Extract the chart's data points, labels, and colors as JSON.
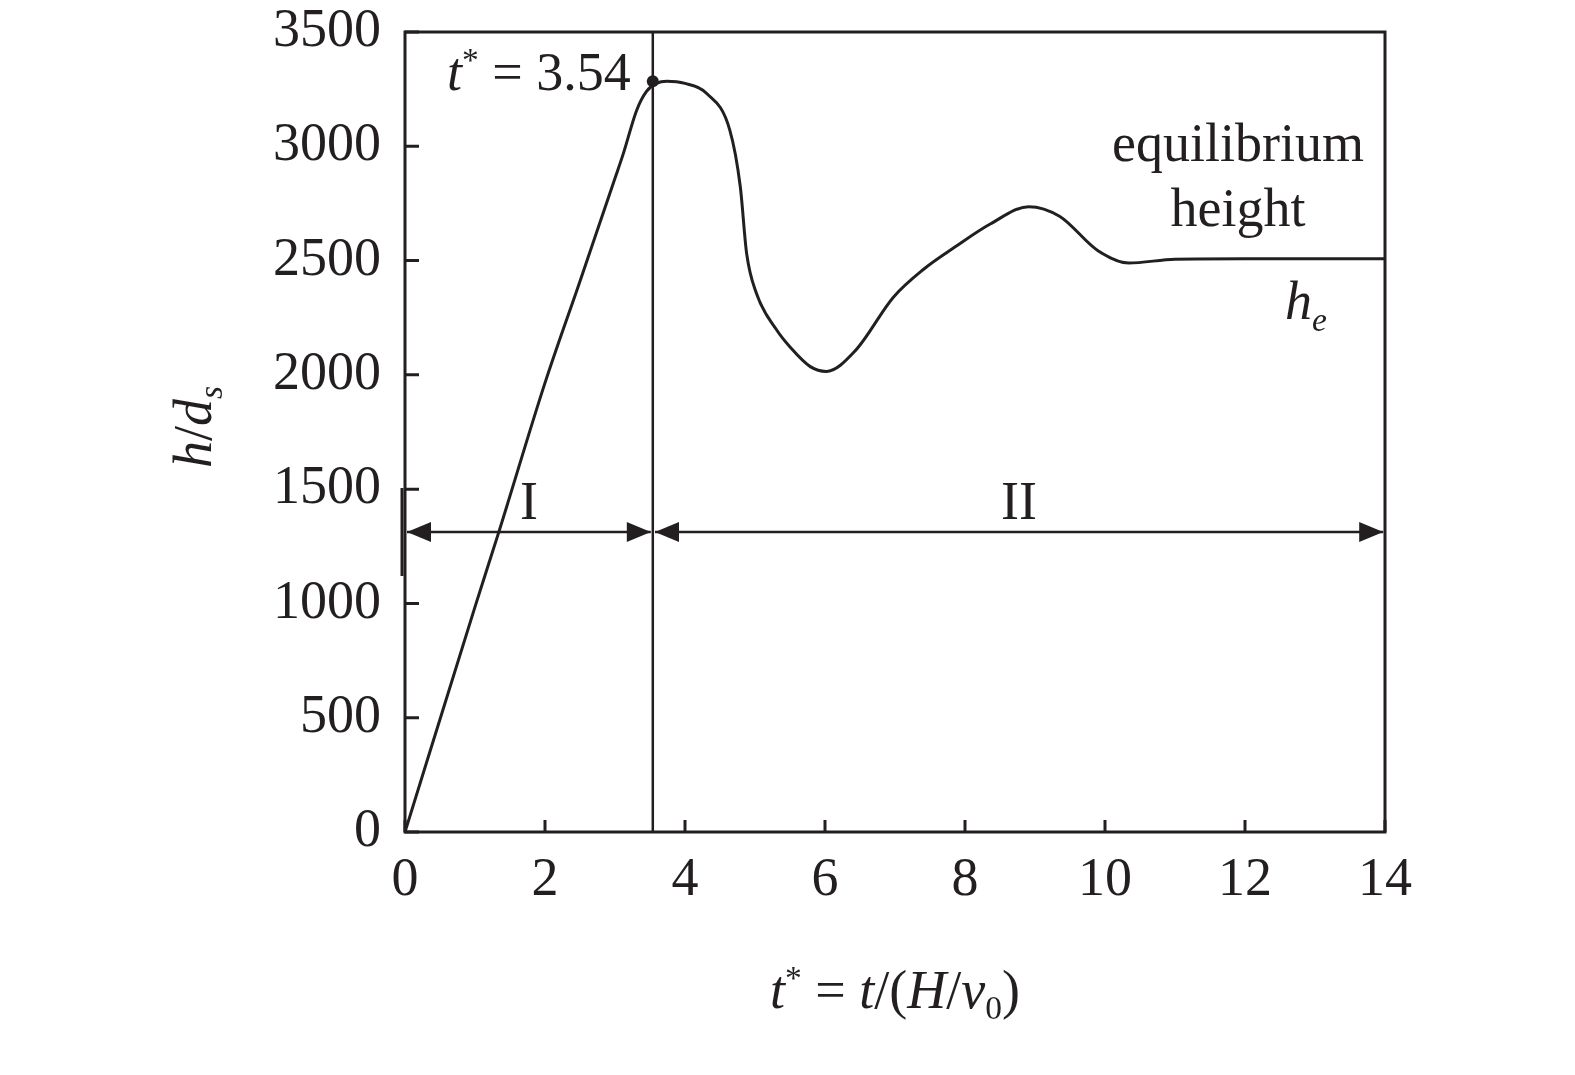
{
  "chart_data": {
    "type": "line",
    "xlabel": "t$^{*}$ = t/(H/v$_{0}$)",
    "ylabel": "h/d$_{s}$",
    "xlim": [
      0,
      14
    ],
    "xticks": [
      0,
      2,
      4,
      6,
      8,
      10,
      12,
      14
    ],
    "ylim": [
      0,
      3500
    ],
    "yticks": [
      0,
      500,
      1000,
      1500,
      2000,
      2500,
      3000,
      3500
    ],
    "series": [
      {
        "color": "#231f20",
        "marker": "none",
        "line_style": "solid",
        "x": [
          0,
          1,
          1.34,
          2,
          2.5,
          3,
          3.12,
          3.31,
          3.45,
          3.59,
          3.74,
          4,
          4.31,
          4.64,
          4.79,
          4.88,
          5.02,
          5.31,
          5.5,
          5.79,
          6.02,
          6.43,
          6.98,
          7.4,
          7.86,
          8.36,
          8.91,
          9.35,
          9.9,
          10.34,
          11,
          12,
          13,
          14
        ],
        "values": [
          0,
          985,
          1312,
          1965,
          2410,
          2860,
          2969,
          3158,
          3240,
          3275,
          3285,
          3275,
          3231,
          3071,
          2823,
          2532,
          2357,
          2196,
          2122,
          2036,
          2015,
          2105,
          2341,
          2460,
          2560,
          2660,
          2736,
          2694,
          2543,
          2489,
          2506,
          2508,
          2508,
          2508
        ]
      },
      {
        "type": "scatter",
        "color": "#231f20",
        "marker": "circle",
        "x": [
          3.54
        ],
        "values": [
          3285
        ]
      }
    ],
    "ref_lines": [
      {
        "axis": "x",
        "value": 3.54,
        "color": "#231f20",
        "line_style": "solid"
      }
    ],
    "annotations": [
      {
        "text": "t$^{*}$ = 3.54",
        "x": 3.54,
        "y": 3285
      },
      {
        "text": "equilibrium height",
        "x": 11.9,
        "y": 2508
      },
      {
        "text": "h$_{e}$",
        "x": 12.87,
        "y": 2508
      },
      "I",
      "II"
    ]
  }
}
